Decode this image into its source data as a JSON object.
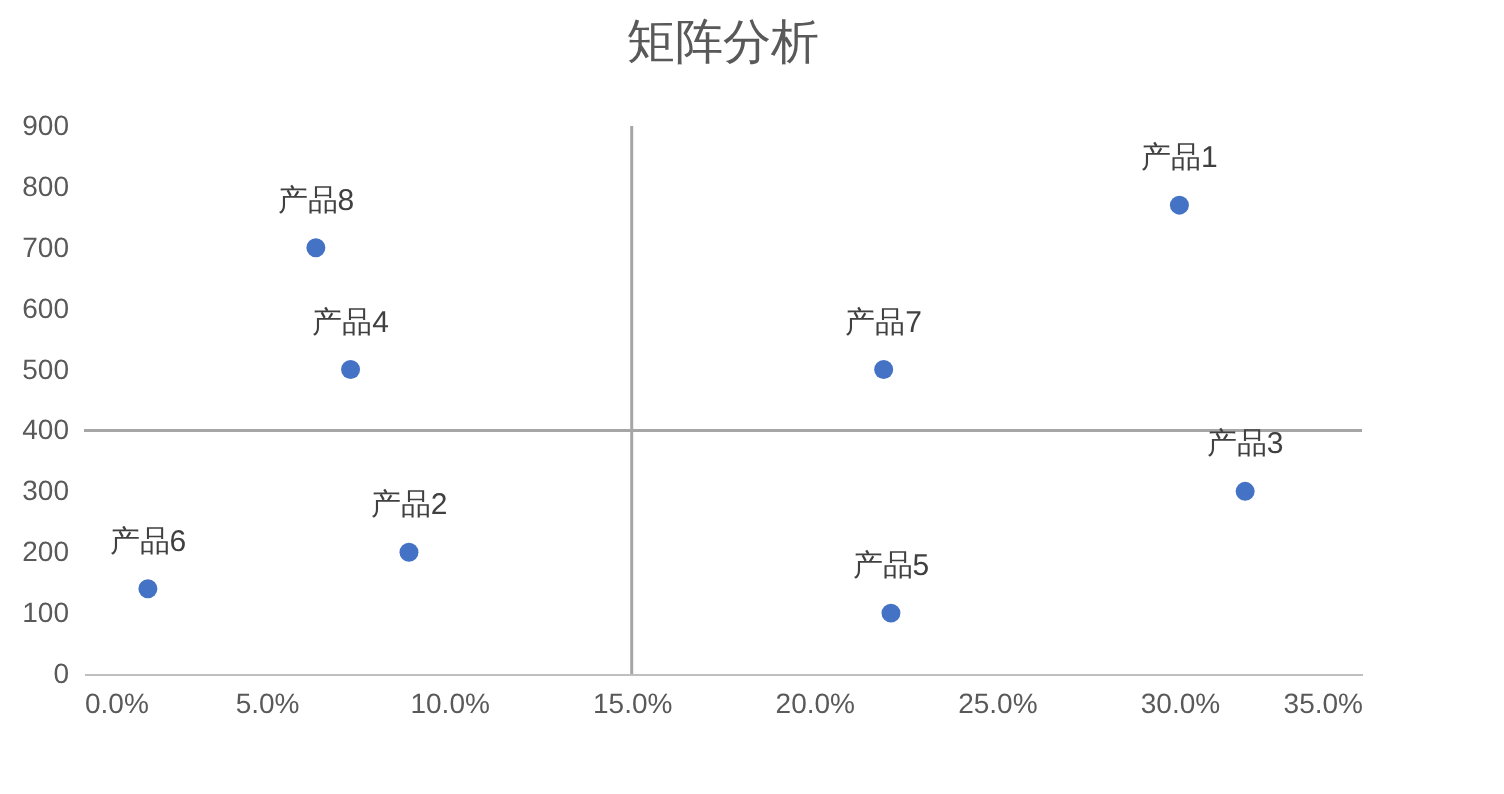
{
  "chart_data": {
    "type": "scatter",
    "title": "矩阵分析",
    "x": [
      30.0,
      8.9,
      31.8,
      7.3,
      22.1,
      1.75,
      21.9,
      6.35
    ],
    "series": [
      {
        "color": "#4472c4",
        "values": [
          770,
          200,
          300,
          500,
          100,
          140,
          500,
          700
        ]
      }
    ],
    "marker": "circle",
    "xlim": [
      0,
      35
    ],
    "ylim": [
      0,
      900
    ],
    "xticks": [
      {
        "value": 0,
        "label": "0.0%"
      },
      {
        "value": 5,
        "label": "5.0%"
      },
      {
        "value": 10,
        "label": "10.0%"
      },
      {
        "value": 15,
        "label": "15.0%"
      },
      {
        "value": 20,
        "label": "20.0%"
      },
      {
        "value": 25,
        "label": "25.0%"
      },
      {
        "value": 30,
        "label": "30.0%"
      },
      {
        "value": 35,
        "label": "35.0%"
      }
    ],
    "yticks": [
      0,
      100,
      200,
      300,
      400,
      500,
      600,
      700,
      800,
      900
    ],
    "ref_lines": [
      {
        "axis": "x",
        "value": 15,
        "color": "#a6a6a6"
      },
      {
        "axis": "y",
        "value": 400,
        "color": "#a6a6a6"
      }
    ],
    "annotations": [
      {
        "text": "产品1",
        "x": 30.0,
        "y": 770
      },
      {
        "text": "产品2",
        "x": 8.9,
        "y": 200
      },
      {
        "text": "产品3",
        "x": 31.8,
        "y": 300
      },
      {
        "text": "产品4",
        "x": 7.3,
        "y": 500
      },
      {
        "text": "产品5",
        "x": 22.1,
        "y": 100
      },
      {
        "text": "产品6",
        "x": 1.75,
        "y": 140
      },
      {
        "text": "产品7",
        "x": 21.9,
        "y": 500
      },
      {
        "text": "产品8",
        "x": 6.35,
        "y": 700
      }
    ],
    "grid": false
  }
}
